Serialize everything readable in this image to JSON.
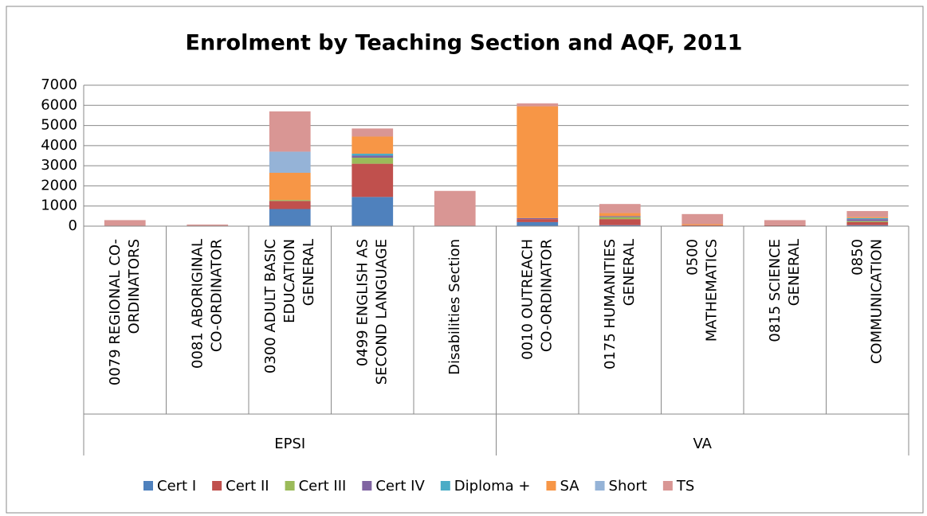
{
  "chart_data": {
    "type": "stacked_bar",
    "title": "Enrolment by Teaching Section and AQF, 2011",
    "groups": [
      {
        "name": "EPSI",
        "categories": [
          [
            "0079 REGIONAL CO-",
            "ORDINATORS"
          ],
          [
            "0081 ABORIGINAL",
            "CO-ORDINATOR"
          ],
          [
            "0300 ADULT BASIC",
            "EDUCATION",
            "GENERAL"
          ],
          [
            "0499 ENGLISH AS",
            "SECOND LANGUAGE"
          ],
          [
            "Disabilities Section"
          ]
        ]
      },
      {
        "name": "VA",
        "categories": [
          [
            "0010 OUTREACH",
            "CO-ORDINATOR"
          ],
          [
            "0175 HUMANITIES",
            "GENERAL"
          ],
          [
            "0500",
            "MATHEMATICS"
          ],
          [
            "0815 SCIENCE",
            "GENERAL"
          ],
          [
            "0850",
            "COMMUNICATION"
          ]
        ]
      }
    ],
    "series": [
      {
        "name": "Cert I",
        "color": "#4f81bd",
        "values": [
          0,
          0,
          850,
          1450,
          0,
          200,
          50,
          0,
          0,
          50
        ]
      },
      {
        "name": "Cert II",
        "color": "#c0504d",
        "values": [
          0,
          0,
          400,
          1650,
          0,
          150,
          300,
          50,
          50,
          150
        ]
      },
      {
        "name": "Cert III",
        "color": "#9bbb59",
        "values": [
          0,
          0,
          50,
          300,
          0,
          0,
          100,
          0,
          0,
          50
        ]
      },
      {
        "name": "Cert IV",
        "color": "#8064a2",
        "values": [
          0,
          0,
          0,
          100,
          0,
          50,
          50,
          0,
          0,
          100
        ]
      },
      {
        "name": "Diploma +",
        "color": "#4bacc6",
        "values": [
          0,
          0,
          0,
          100,
          0,
          0,
          0,
          0,
          0,
          50
        ]
      },
      {
        "name": "SA",
        "color": "#f79646",
        "values": [
          0,
          0,
          1350,
          850,
          0,
          5550,
          150,
          50,
          0,
          50
        ]
      },
      {
        "name": "Short",
        "color": "#95b3d7",
        "values": [
          0,
          0,
          1050,
          0,
          0,
          0,
          0,
          0,
          0,
          0
        ]
      },
      {
        "name": "TS",
        "color": "#d99694",
        "values": [
          300,
          80,
          2000,
          400,
          1750,
          150,
          450,
          500,
          250,
          300
        ]
      }
    ],
    "ylim": [
      0,
      7000
    ],
    "yticks": [
      0,
      1000,
      2000,
      3000,
      4000,
      5000,
      6000,
      7000
    ],
    "grid": true,
    "legend": "bottom"
  }
}
